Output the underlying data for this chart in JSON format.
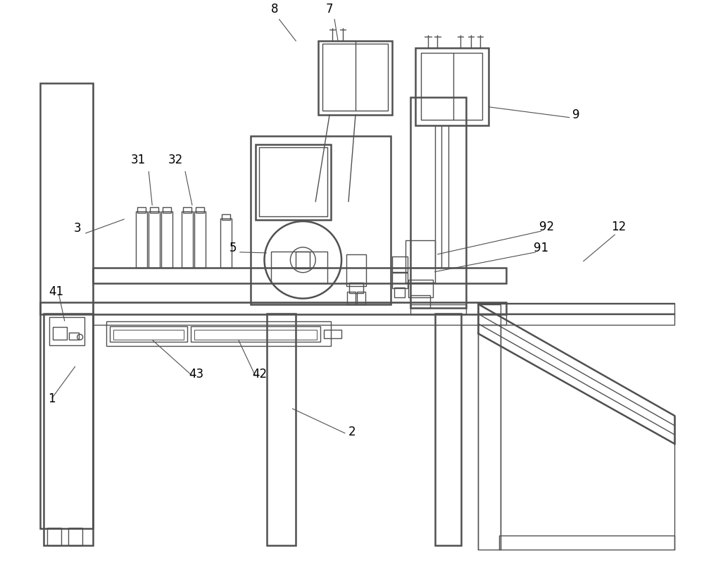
{
  "bg_color": "#ffffff",
  "line_color": "#505050",
  "lw": 1.0,
  "tlw": 1.8,
  "label_fontsize": 12
}
